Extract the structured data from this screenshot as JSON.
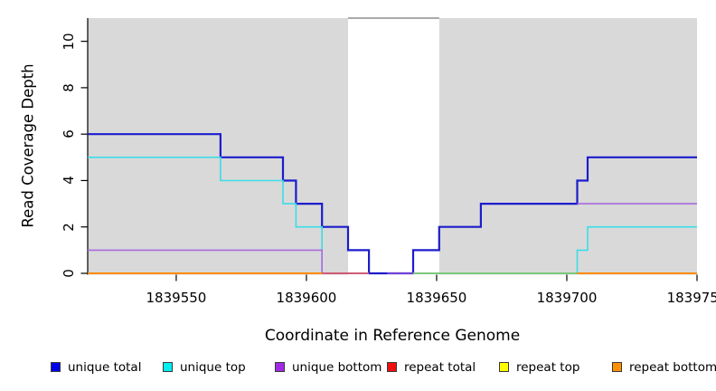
{
  "chart_data": {
    "type": "line",
    "subtype": "step-coverage",
    "title": "",
    "xlabel": "Coordinate in Reference Genome",
    "ylabel": "Read Coverage Depth",
    "xlim": [
      1839516,
      1839750
    ],
    "ylim": [
      0,
      11
    ],
    "grid": "off",
    "panel_bg": "#d9d9d9",
    "x_ticks": [
      1839550,
      1839600,
      1839650,
      1839700,
      1839750
    ],
    "y_ticks": [
      0,
      2,
      4,
      6,
      8,
      10
    ],
    "highlight_region": {
      "x0": 1839616,
      "x1": 1839651,
      "fill": "#ffffff",
      "top_border_color": "#8e8e8e"
    },
    "series": [
      {
        "name": "unique total",
        "color": "#1c1ccc",
        "width": 2.2,
        "paths": [
          [
            [
              1839516,
              6
            ],
            [
              1839567,
              5
            ],
            [
              1839591,
              4
            ],
            [
              1839596,
              3
            ],
            [
              1839606,
              2
            ],
            [
              1839616,
              1
            ],
            [
              1839624,
              0
            ],
            [
              1839641,
              1
            ],
            [
              1839651,
              2
            ],
            [
              1839667,
              3
            ],
            [
              1839704,
              4
            ],
            [
              1839708,
              5
            ],
            [
              1839750,
              5
            ]
          ]
        ]
      },
      {
        "name": "unique top",
        "color": "#3bdde6",
        "width": 1.6,
        "paths": [
          [
            [
              1839516,
              5
            ],
            [
              1839567,
              4
            ],
            [
              1839591,
              3
            ],
            [
              1839596,
              2
            ],
            [
              1839606,
              0
            ]
          ],
          [
            [
              1839704,
              0
            ],
            [
              1839704,
              1
            ],
            [
              1839708,
              2
            ],
            [
              1839750,
              2
            ]
          ]
        ]
      },
      {
        "name": "unique bottom",
        "color": "#a86ade",
        "width": 1.6,
        "paths": [
          [
            [
              1839516,
              1
            ],
            [
              1839606,
              0
            ]
          ],
          [
            [
              1839704,
              3
            ],
            [
              1839750,
              3
            ]
          ]
        ]
      }
    ],
    "baseline_segments": [
      {
        "series": "repeat bottom",
        "color": "#ff8d00",
        "from": 1839516,
        "to": 1839606,
        "value": 0
      },
      {
        "series": "repeat total",
        "color": "#cf5b76",
        "from": 1839606,
        "to": 1839624,
        "value": 0
      },
      {
        "series": "unique bottom",
        "color": "#6f42d8",
        "from": 1839631,
        "to": 1839641,
        "value": 0
      },
      {
        "series": "unique top + repeat top",
        "color": "#7dc87d",
        "from": 1839641,
        "to": 1839704,
        "value": 0
      },
      {
        "series": "repeat bottom",
        "color": "#ff8d00",
        "from": 1839704,
        "to": 1839750,
        "value": 0
      }
    ],
    "legend": {
      "position": "bottom",
      "items": [
        {
          "label": "unique total",
          "color": "#0000e8"
        },
        {
          "label": "unique top",
          "color": "#00eef0"
        },
        {
          "label": "unique bottom",
          "color": "#a22ae6"
        },
        {
          "label": "repeat total",
          "color": "#ee1111"
        },
        {
          "label": "repeat top",
          "color": "#ffff00"
        },
        {
          "label": "repeat bottom",
          "color": "#ff9100"
        }
      ]
    }
  }
}
